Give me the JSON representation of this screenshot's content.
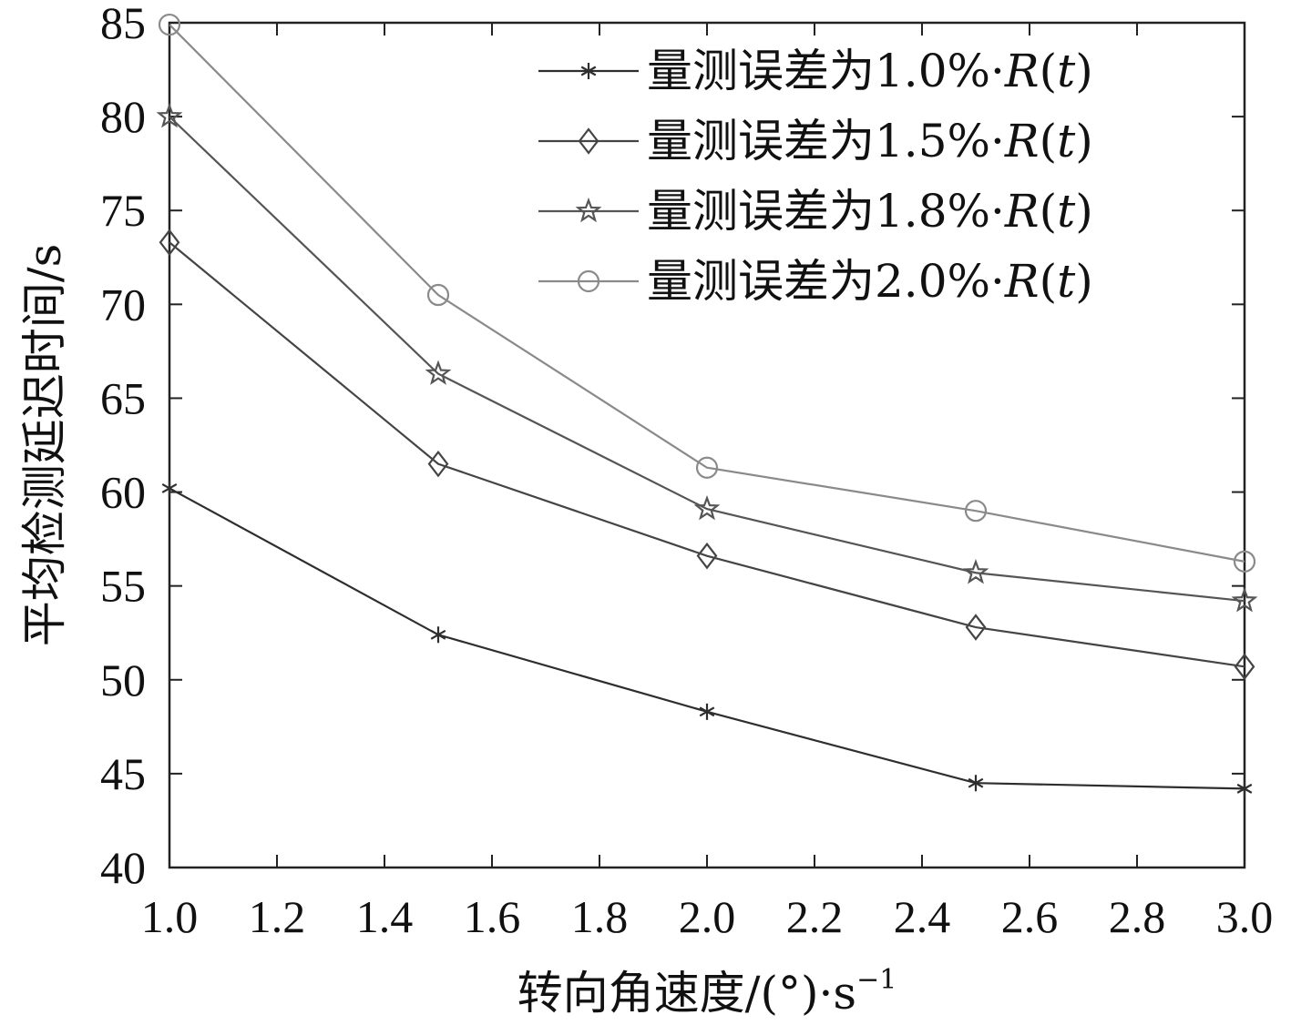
{
  "chart_data": {
    "type": "line",
    "title": "",
    "xlabel": "转向角速度/(°)·s",
    "xlabel_superscript": "−1",
    "ylabel": "平均检测延迟时间/s",
    "xlim": [
      1.0,
      3.0
    ],
    "ylim": [
      40,
      85
    ],
    "xticks": [
      "1.0",
      "1.2",
      "1.4",
      "1.6",
      "1.8",
      "2.0",
      "2.2",
      "2.4",
      "2.6",
      "2.8",
      "3.0"
    ],
    "yticks": [
      "40",
      "45",
      "50",
      "55",
      "60",
      "65",
      "70",
      "75",
      "80",
      "85"
    ],
    "grid": false,
    "legend_position": "top-right",
    "x": [
      1.0,
      1.5,
      2.0,
      2.5,
      3.0
    ],
    "series": [
      {
        "name": "量测误差为1.0%·R(t)",
        "label_prefix": "量测误差为1.0%·",
        "label_func": "R",
        "label_arg": "t",
        "marker": "asterisk",
        "color": "#2e2e2e",
        "values": [
          60.2,
          52.4,
          48.3,
          44.5,
          44.2
        ]
      },
      {
        "name": "量测误差为1.5%·R(t)",
        "label_prefix": "量测误差为1.5%·",
        "label_func": "R",
        "label_arg": "t",
        "marker": "diamond",
        "color": "#444444",
        "values": [
          73.3,
          61.5,
          56.6,
          52.8,
          50.7
        ]
      },
      {
        "name": "量测误差为1.8%·R(t)",
        "label_prefix": "量测误差为1.8%·",
        "label_func": "R",
        "label_arg": "t",
        "marker": "star",
        "color": "#555555",
        "values": [
          80.0,
          66.3,
          59.1,
          55.7,
          54.2
        ]
      },
      {
        "name": "量测误差为2.0%·R(t)",
        "label_prefix": "量测误差为2.0%·",
        "label_func": "R",
        "label_arg": "t",
        "marker": "circle",
        "color": "#8a8a8a",
        "values": [
          84.9,
          70.5,
          61.3,
          59.0,
          56.3
        ]
      }
    ]
  }
}
